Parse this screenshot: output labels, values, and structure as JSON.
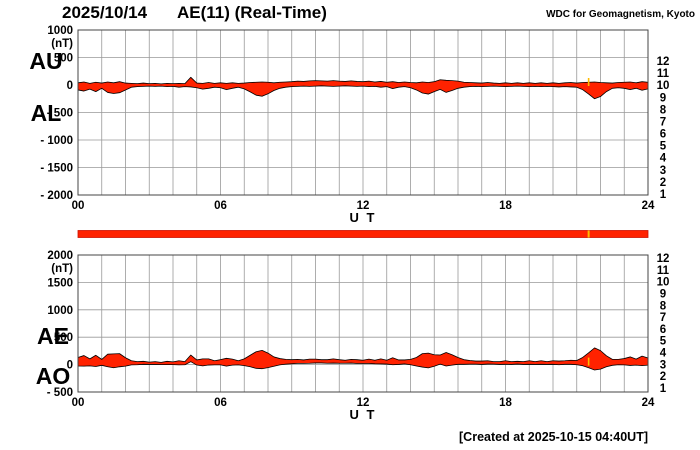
{
  "header": {
    "date": "2025/10/14",
    "title": "AE(11) (Real-Time)",
    "source": "WDC for Geomagnetism, Kyoto"
  },
  "footer": {
    "created": "[Created at 2025-10-15 04:40UT]"
  },
  "colors": {
    "trace_fill": "#ff2200",
    "trace_stroke": "#000000",
    "grid": "#999999",
    "frame": "#444444",
    "bar_fill": "#ff2200",
    "bar_edge": "#cc1100",
    "bar_marker": "#ffbb00"
  },
  "stations": {
    "labels": [
      "12",
      "11",
      "10",
      "9",
      "8",
      "7",
      "6",
      "5",
      "4",
      "3",
      "2",
      "1"
    ],
    "colors": [
      "#ee0088",
      "#ff2200",
      "#ff8800",
      "#ffdd00",
      "#77ee00",
      "#00cccc",
      "#2277ff",
      "#5522ee",
      "#ee22ee",
      "#111111",
      "#888888",
      "#bbbbbb"
    ]
  },
  "availability_bar": {
    "start_hour": 0,
    "end_hour": 24,
    "marker_hour": 21.5
  },
  "chart_data": [
    {
      "type": "area",
      "panel": "AU-AL",
      "left_labels": [
        "AU",
        "AL"
      ],
      "unit": "(nT)",
      "xlabel": "U T",
      "x_start_hour": 0,
      "x_end_hour": 24,
      "x_step_hours": 0.25,
      "xtick_hours": [
        0,
        6,
        12,
        18,
        24
      ],
      "xtick_labels": [
        "00",
        "06",
        "12",
        "18",
        "24"
      ],
      "ylim": [
        -2000,
        1000
      ],
      "ytick_values": [
        1000,
        500,
        0,
        -500,
        -1000,
        -1500,
        -2000
      ],
      "ytick_labels": [
        "1000",
        "500",
        "0",
        "- 500",
        "- 1000",
        "- 1500",
        "- 2000"
      ],
      "grid": true,
      "marker_hour": 21.5,
      "series": [
        {
          "name": "AU",
          "values": [
            40,
            55,
            30,
            50,
            35,
            55,
            40,
            60,
            35,
            30,
            25,
            35,
            25,
            30,
            20,
            30,
            25,
            30,
            25,
            140,
            35,
            30,
            45,
            30,
            40,
            30,
            40,
            30,
            35,
            45,
            50,
            55,
            50,
            40,
            50,
            55,
            60,
            70,
            65,
            75,
            80,
            75,
            70,
            80,
            70,
            65,
            75,
            65,
            60,
            70,
            55,
            65,
            50,
            60,
            45,
            55,
            45,
            40,
            55,
            45,
            60,
            95,
            85,
            80,
            70,
            50,
            45,
            40,
            35,
            45,
            35,
            30,
            40,
            30,
            40,
            30,
            40,
            30,
            40,
            30,
            40,
            30,
            40,
            45,
            35,
            45,
            50,
            55,
            45,
            40,
            35,
            45,
            50,
            55,
            40,
            60,
            50
          ]
        },
        {
          "name": "AL",
          "values": [
            -90,
            -110,
            -75,
            -120,
            -60,
            -135,
            -155,
            -140,
            -90,
            -40,
            -30,
            -25,
            -20,
            -25,
            -20,
            -30,
            -25,
            -40,
            -30,
            -35,
            -50,
            -75,
            -60,
            -40,
            -50,
            -85,
            -60,
            -40,
            -70,
            -125,
            -185,
            -205,
            -160,
            -100,
            -60,
            -40,
            -30,
            -25,
            -20,
            -25,
            -20,
            -15,
            -20,
            -25,
            -20,
            -15,
            -20,
            -25,
            -20,
            -30,
            -25,
            -40,
            -30,
            -65,
            -40,
            -30,
            -50,
            -90,
            -145,
            -165,
            -120,
            -80,
            -135,
            -100,
            -60,
            -40,
            -30,
            -25,
            -30,
            -25,
            -20,
            -25,
            -30,
            -25,
            -20,
            -25,
            -30,
            -25,
            -30,
            -25,
            -30,
            -35,
            -30,
            -35,
            -40,
            -85,
            -165,
            -250,
            -210,
            -120,
            -60,
            -50,
            -60,
            -85,
            -60,
            -95,
            -70
          ]
        }
      ]
    },
    {
      "type": "area",
      "panel": "AE-AO",
      "left_labels": [
        "AE",
        "AO"
      ],
      "unit": "(nT)",
      "xlabel": "U T",
      "x_start_hour": 0,
      "x_end_hour": 24,
      "x_step_hours": 0.25,
      "xtick_hours": [
        0,
        6,
        12,
        18,
        24
      ],
      "xtick_labels": [
        "00",
        "06",
        "12",
        "18",
        "24"
      ],
      "ylim": [
        -500,
        2000
      ],
      "ytick_values": [
        2000,
        1500,
        1000,
        500,
        0,
        -500
      ],
      "ytick_labels": [
        "2000",
        "1500",
        "1000",
        "500",
        "0",
        "- 500"
      ],
      "grid": true,
      "marker_hour": 21.5,
      "series": [
        {
          "name": "AE",
          "values": [
            130,
            165,
            105,
            170,
            95,
            190,
            195,
            200,
            125,
            70,
            55,
            60,
            45,
            55,
            40,
            60,
            50,
            70,
            55,
            175,
            85,
            105,
            105,
            70,
            90,
            115,
            100,
            70,
            105,
            170,
            235,
            260,
            210,
            140,
            110,
            95,
            90,
            95,
            85,
            100,
            100,
            90,
            90,
            105,
            90,
            80,
            95,
            90,
            80,
            100,
            80,
            105,
            80,
            125,
            85,
            85,
            95,
            130,
            200,
            210,
            180,
            175,
            220,
            180,
            130,
            90,
            75,
            65,
            65,
            70,
            55,
            55,
            70,
            55,
            60,
            55,
            70,
            55,
            70,
            55,
            70,
            65,
            70,
            80,
            75,
            130,
            215,
            305,
            255,
            160,
            95,
            95,
            110,
            140,
            100,
            155,
            120
          ]
        },
        {
          "name": "AO",
          "values": [
            -25,
            -28,
            -23,
            -35,
            -13,
            -40,
            -58,
            -40,
            -28,
            -5,
            -3,
            5,
            3,
            3,
            0,
            0,
            0,
            -5,
            -3,
            53,
            -8,
            -23,
            -8,
            -5,
            -5,
            -28,
            -10,
            -5,
            -18,
            -40,
            -68,
            -75,
            -55,
            -30,
            -5,
            8,
            15,
            23,
            23,
            25,
            30,
            30,
            25,
            28,
            25,
            25,
            28,
            20,
            20,
            20,
            15,
            13,
            10,
            -3,
            3,
            13,
            -3,
            -25,
            -45,
            -60,
            -30,
            8,
            -25,
            -10,
            5,
            5,
            8,
            8,
            3,
            10,
            8,
            3,
            5,
            3,
            10,
            3,
            5,
            3,
            5,
            3,
            5,
            -3,
            5,
            5,
            -3,
            -20,
            -58,
            -98,
            -83,
            -40,
            -13,
            -3,
            -5,
            -15,
            -10,
            -18,
            -10
          ]
        }
      ]
    }
  ]
}
